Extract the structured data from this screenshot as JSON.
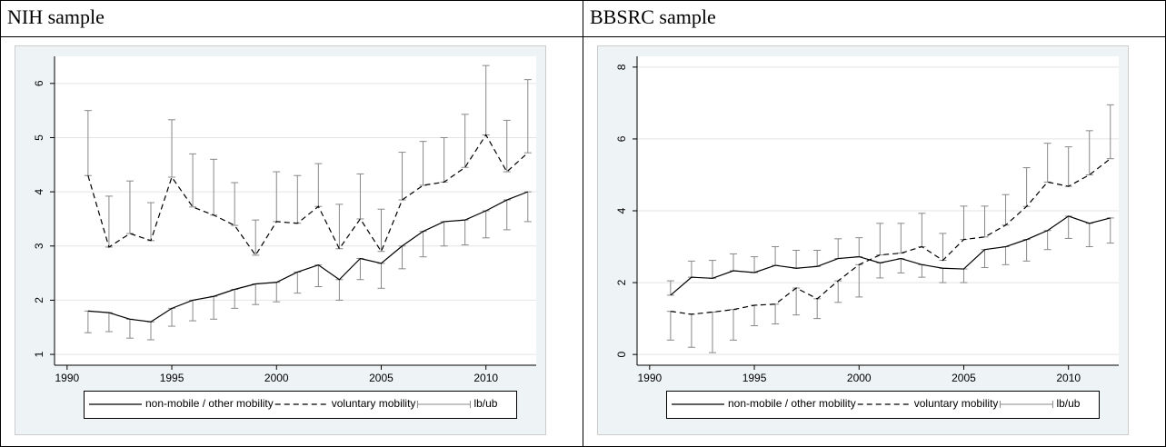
{
  "chart_data": [
    {
      "type": "line",
      "title": "NIH sample",
      "x": [
        1991,
        1992,
        1993,
        1994,
        1995,
        1996,
        1997,
        1998,
        1999,
        2000,
        2001,
        2002,
        2003,
        2004,
        2005,
        2006,
        2007,
        2008,
        2009,
        2010,
        2011,
        2012
      ],
      "series": [
        {
          "name": "non-mobile / other mobility",
          "color": "#000000",
          "dash": "solid",
          "values": [
            1.8,
            1.77,
            1.65,
            1.6,
            1.85,
            2.0,
            2.07,
            2.2,
            2.3,
            2.33,
            2.52,
            2.65,
            2.38,
            2.77,
            2.68,
            3.0,
            3.27,
            3.45,
            3.48,
            3.65,
            3.85,
            4.0
          ],
          "bounds": [
            1.4,
            1.42,
            1.3,
            1.27,
            1.52,
            1.62,
            1.65,
            1.85,
            1.92,
            1.97,
            2.13,
            2.25,
            2.0,
            2.38,
            2.22,
            2.58,
            2.8,
            3.0,
            3.02,
            3.15,
            3.3,
            3.45
          ]
        },
        {
          "name": "voluntary mobility",
          "color": "#000000",
          "dash": "dashed",
          "values": [
            4.3,
            2.98,
            3.23,
            3.1,
            4.27,
            3.72,
            3.57,
            3.38,
            2.83,
            3.45,
            3.42,
            3.73,
            2.95,
            3.5,
            2.9,
            3.85,
            4.12,
            4.18,
            4.45,
            5.05,
            4.37,
            4.72
          ],
          "bounds": [
            5.5,
            3.92,
            4.2,
            3.8,
            5.33,
            4.7,
            4.6,
            4.17,
            3.48,
            4.37,
            4.3,
            4.52,
            3.77,
            4.33,
            3.68,
            4.73,
            4.93,
            5.0,
            5.43,
            6.33,
            5.32,
            6.07
          ]
        },
        {
          "name": "lb/ub",
          "color": "#888888"
        }
      ],
      "xlim": [
        1989.4,
        2012.4
      ],
      "xticks": [
        1990,
        1995,
        2000,
        2005,
        2010
      ],
      "ylim": [
        0.8,
        6.5
      ],
      "yticks": [
        1,
        2,
        3,
        4,
        5,
        6
      ],
      "grid": true
    },
    {
      "type": "line",
      "title": "BBSRC sample",
      "x": [
        1991,
        1992,
        1993,
        1994,
        1995,
        1996,
        1997,
        1998,
        1999,
        2000,
        2001,
        2002,
        2003,
        2004,
        2005,
        2006,
        2007,
        2008,
        2009,
        2010,
        2011,
        2012
      ],
      "series": [
        {
          "name": "non-mobile / other mobility",
          "color": "#000000",
          "dash": "solid",
          "values": [
            1.65,
            2.15,
            2.12,
            2.33,
            2.28,
            2.48,
            2.4,
            2.45,
            2.67,
            2.72,
            2.55,
            2.67,
            2.5,
            2.4,
            2.38,
            2.92,
            3.0,
            3.2,
            3.45,
            3.85,
            3.65,
            3.8
          ],
          "bounds": [
            2.05,
            2.6,
            2.62,
            2.8,
            2.72,
            3.0,
            2.9,
            2.9,
            3.22,
            3.25,
            2.13,
            2.27,
            2.15,
            2.0,
            2.0,
            2.42,
            2.5,
            2.6,
            2.92,
            3.23,
            3.0,
            3.1
          ]
        },
        {
          "name": "voluntary mobility",
          "color": "#000000",
          "dash": "dashed",
          "values": [
            1.2,
            1.12,
            1.18,
            1.25,
            1.37,
            1.4,
            1.85,
            1.55,
            2.05,
            2.5,
            2.77,
            2.82,
            3.0,
            2.62,
            3.2,
            3.27,
            3.6,
            4.12,
            4.8,
            4.68,
            5.0,
            5.45
          ],
          "bounds": [
            0.4,
            0.2,
            0.05,
            0.4,
            0.8,
            0.85,
            1.1,
            1.0,
            1.45,
            1.6,
            3.65,
            3.65,
            3.93,
            3.37,
            4.13,
            4.13,
            4.45,
            5.2,
            5.88,
            5.78,
            6.23,
            6.95
          ]
        },
        {
          "name": "lb/ub",
          "color": "#888888"
        }
      ],
      "xlim": [
        1989.4,
        2012.4
      ],
      "xticks": [
        1990,
        1995,
        2000,
        2005,
        2010
      ],
      "ylim": [
        -0.3,
        8.3
      ],
      "yticks": [
        0,
        2,
        4,
        6,
        8
      ],
      "grid": true
    }
  ]
}
